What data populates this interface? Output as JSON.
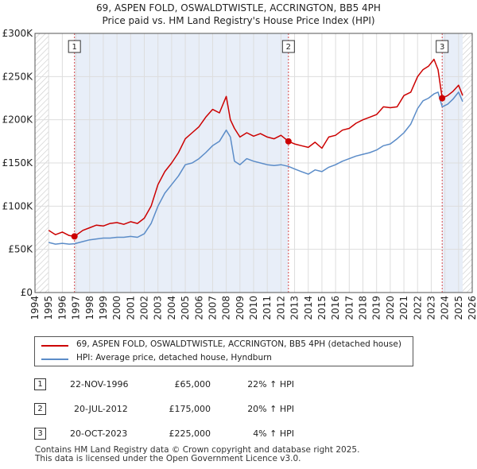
{
  "title_line1": "69, ASPEN FOLD, OSWALDTWISTLE, ACCRINGTON, BB5 4PH",
  "title_line2": "Price paid vs. HM Land Registry's House Price Index (HPI)",
  "legend": {
    "red_label": "69, ASPEN FOLD, OSWALDTWISTLE, ACCRINGTON, BB5 4PH (detached house)",
    "blue_label": "HPI: Average price, detached house, Hyndburn"
  },
  "transactions": [
    {
      "num": "1",
      "date": "22-NOV-1996",
      "price": "£65,000",
      "hpi": "22% ↑ HPI"
    },
    {
      "num": "2",
      "date": "20-JUL-2012",
      "price": "£175,000",
      "hpi": "20% ↑ HPI"
    },
    {
      "num": "3",
      "date": "20-OCT-2023",
      "price": "£225,000",
      "hpi": "4% ↑ HPI"
    }
  ],
  "footer_line1": "Contains HM Land Registry data © Crown copyright and database right 2025.",
  "footer_line2": "This data is licensed under the Open Government Licence v3.0.",
  "colors": {
    "red": "#cc0000",
    "blue": "#5b8cc8",
    "shade": "#e8eef8",
    "hatch": "#c8c8c8"
  },
  "chart_data": {
    "type": "line",
    "x_ticks": [
      1994,
      1995,
      1996,
      1997,
      1998,
      1999,
      2000,
      2001,
      2002,
      2003,
      2004,
      2005,
      2006,
      2007,
      2008,
      2009,
      2010,
      2011,
      2012,
      2013,
      2014,
      2015,
      2016,
      2017,
      2018,
      2019,
      2020,
      2021,
      2022,
      2023,
      2024,
      2025,
      2026
    ],
    "y_ticks": [
      0,
      50000,
      100000,
      150000,
      200000,
      250000,
      300000
    ],
    "y_tick_labels": [
      "£0",
      "£50K",
      "£100K",
      "£150K",
      "£200K",
      "£250K",
      "£300K"
    ],
    "xlim": [
      1994,
      2026
    ],
    "ylim": [
      0,
      300000
    ],
    "grid": true,
    "sales": [
      {
        "label": "1",
        "x": 1996.89,
        "y": 65000
      },
      {
        "label": "2",
        "x": 2012.55,
        "y": 175000
      },
      {
        "label": "3",
        "x": 2023.8,
        "y": 225000
      }
    ],
    "shaded_regions": [
      [
        1996.89,
        2012.55
      ],
      [
        2023.8,
        2025.3
      ]
    ],
    "series": [
      {
        "name": "69, ASPEN FOLD, OSWALDTWISTLE, ACCRINGTON, BB5 4PH (detached house)",
        "color": "#cc0000",
        "x": [
          1995.0,
          1995.5,
          1996.0,
          1996.5,
          1996.89,
          1997.5,
          1998.0,
          1998.5,
          1999.0,
          1999.5,
          2000.0,
          2000.5,
          2001.0,
          2001.5,
          2002.0,
          2002.5,
          2003.0,
          2003.5,
          2004.0,
          2004.5,
          2005.0,
          2005.5,
          2006.0,
          2006.5,
          2007.0,
          2007.5,
          2008.0,
          2008.3,
          2008.6,
          2009.0,
          2009.5,
          2010.0,
          2010.5,
          2011.0,
          2011.5,
          2012.0,
          2012.55,
          2013.0,
          2013.5,
          2014.0,
          2014.5,
          2015.0,
          2015.5,
          2016.0,
          2016.5,
          2017.0,
          2017.5,
          2018.0,
          2018.5,
          2019.0,
          2019.5,
          2020.0,
          2020.5,
          2021.0,
          2021.5,
          2022.0,
          2022.4,
          2022.8,
          2023.2,
          2023.5,
          2023.8,
          2024.2,
          2024.6,
          2025.0,
          2025.3
        ],
        "y": [
          72000,
          67000,
          70000,
          66000,
          65000,
          72000,
          75000,
          78000,
          77000,
          80000,
          81000,
          79000,
          82000,
          80000,
          86000,
          100000,
          125000,
          140000,
          150000,
          162000,
          178000,
          185000,
          192000,
          203000,
          212000,
          208000,
          227000,
          200000,
          190000,
          180000,
          185000,
          181000,
          184000,
          180000,
          178000,
          182000,
          175000,
          172000,
          170000,
          168000,
          174000,
          167000,
          180000,
          182000,
          188000,
          190000,
          196000,
          200000,
          203000,
          206000,
          215000,
          214000,
          215000,
          228000,
          232000,
          250000,
          258000,
          262000,
          270000,
          258000,
          225000,
          228000,
          233000,
          240000,
          228000
        ]
      },
      {
        "name": "HPI: Average price, detached house, Hyndburn",
        "color": "#5b8cc8",
        "x": [
          1995.0,
          1995.5,
          1996.0,
          1996.5,
          1996.89,
          1997.5,
          1998.0,
          1998.5,
          1999.0,
          1999.5,
          2000.0,
          2000.5,
          2001.0,
          2001.5,
          2002.0,
          2002.5,
          2003.0,
          2003.5,
          2004.0,
          2004.5,
          2005.0,
          2005.5,
          2006.0,
          2006.5,
          2007.0,
          2007.5,
          2008.0,
          2008.3,
          2008.6,
          2009.0,
          2009.5,
          2010.0,
          2010.5,
          2011.0,
          2011.5,
          2012.0,
          2012.55,
          2013.0,
          2013.5,
          2014.0,
          2014.5,
          2015.0,
          2015.5,
          2016.0,
          2016.5,
          2017.0,
          2017.5,
          2018.0,
          2018.5,
          2019.0,
          2019.5,
          2020.0,
          2020.5,
          2021.0,
          2021.5,
          2022.0,
          2022.4,
          2022.8,
          2023.2,
          2023.5,
          2023.8,
          2024.2,
          2024.6,
          2025.0,
          2025.3
        ],
        "y": [
          58000,
          56000,
          57000,
          56000,
          56500,
          59000,
          61000,
          62000,
          63000,
          63000,
          64000,
          64000,
          65000,
          64000,
          68000,
          80000,
          100000,
          115000,
          125000,
          135000,
          148000,
          150000,
          155000,
          162000,
          170000,
          175000,
          188000,
          180000,
          152000,
          148000,
          155000,
          152000,
          150000,
          148000,
          147000,
          148000,
          146000,
          143000,
          140000,
          137000,
          142000,
          140000,
          145000,
          148000,
          152000,
          155000,
          158000,
          160000,
          162000,
          165000,
          170000,
          172000,
          178000,
          185000,
          195000,
          213000,
          222000,
          225000,
          230000,
          232000,
          215000,
          218000,
          224000,
          232000,
          221000
        ]
      }
    ]
  }
}
